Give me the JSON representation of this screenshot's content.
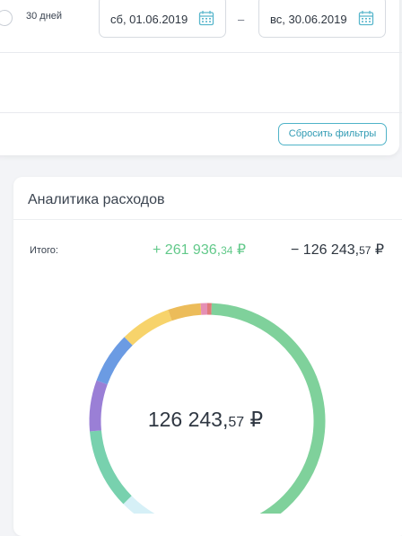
{
  "filters": {
    "radio_label": "30 дней",
    "date_from": "сб, 01.06.2019",
    "date_separator": "–",
    "date_to": "вс, 30.06.2019",
    "reset_label": "Сбросить фильтры"
  },
  "analytics": {
    "title": "Аналитика расходов",
    "total_label": "Итого:",
    "income": {
      "sign_main": "+ 261 936,",
      "cents": "34",
      "currency": " ₽"
    },
    "expense": {
      "sign_main": "− 126 243,",
      "cents": "57",
      "currency": " ₽"
    },
    "center": {
      "main": "126 243,",
      "cents": "57",
      "currency": " ₽"
    }
  },
  "chart_data": {
    "type": "pie",
    "total": 126243.57,
    "segments": [
      {
        "color": "#e07a7a",
        "fraction": 0.006
      },
      {
        "color": "#7fd19b",
        "fraction": 0.55
      },
      {
        "color": "#d6f0f7",
        "fraction": 0.07
      },
      {
        "color": "#78d1ae",
        "fraction": 0.11
      },
      {
        "color": "#9a7fd6",
        "fraction": 0.07
      },
      {
        "color": "#6b9be3",
        "fraction": 0.07
      },
      {
        "color": "#f7d36b",
        "fraction": 0.07
      },
      {
        "color": "#ecbc5a",
        "fraction": 0.045
      },
      {
        "color": "#e58fb4",
        "fraction": 0.009
      }
    ]
  }
}
